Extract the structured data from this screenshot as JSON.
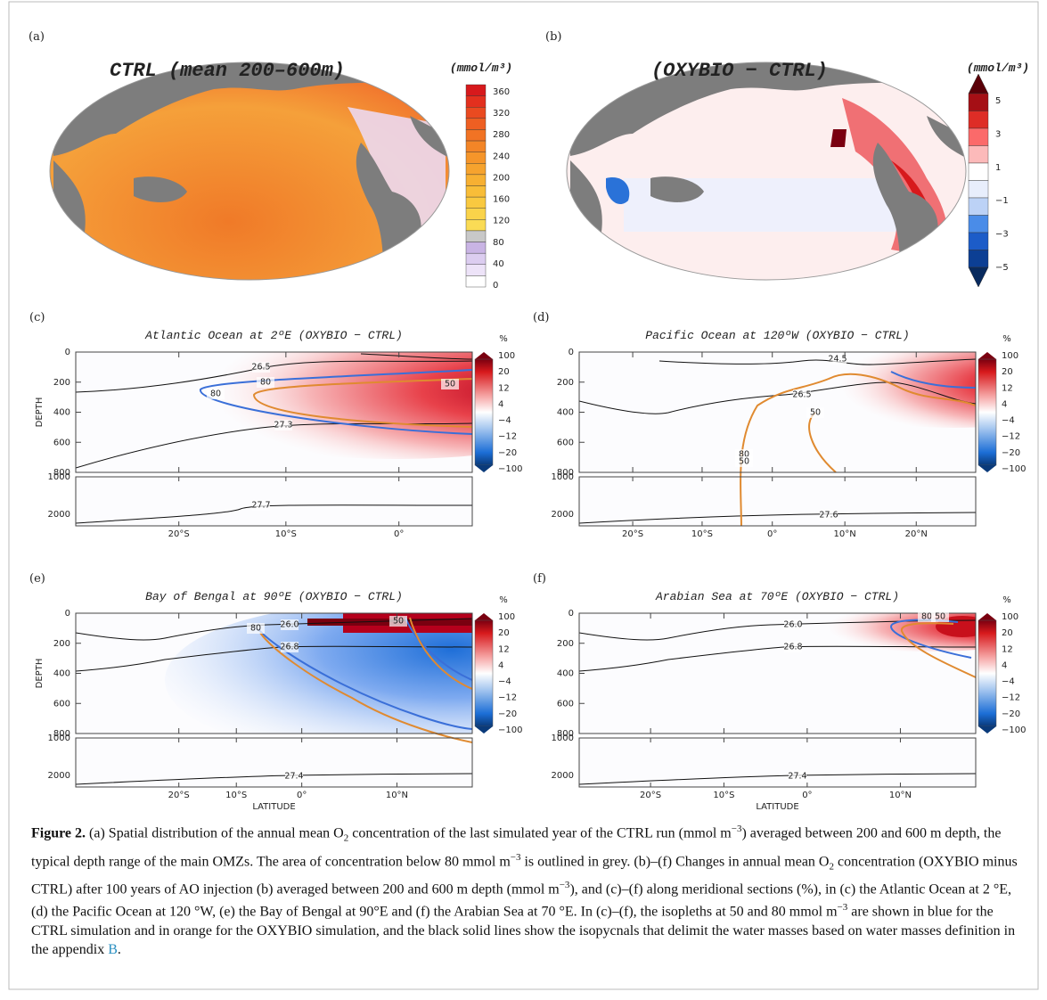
{
  "panels": [
    {
      "label": "(a)",
      "title": "CTRL (mean 200–600m)",
      "units": "(mmol/m³)",
      "colorbar_ticks": [
        "360",
        "320",
        "280",
        "240",
        "200",
        "160",
        "120",
        "80",
        "40",
        "0"
      ]
    },
    {
      "label": "(b)",
      "title": "(OXYBIO − CTRL)",
      "units": "(mmol/m³)",
      "colorbar_ticks": [
        "5",
        "3",
        "1",
        "−1",
        "−3",
        "−5"
      ]
    },
    {
      "label": "(c)",
      "title": "Atlantic Ocean at 2ºE (OXYBIO − CTRL)",
      "units": "%",
      "colorbar_ticks": [
        "100",
        "20",
        "12",
        "4",
        "−4",
        "−12",
        "−20",
        "−100"
      ],
      "y_label": "DEPTH",
      "y_ticks": [
        "0",
        "200",
        "400",
        "600",
        "800"
      ],
      "lower_y_ticks": [
        "1000",
        "2000"
      ],
      "x_ticks": [
        "20°S",
        "10°S",
        "0°"
      ],
      "contour_labels": [
        "26.5",
        "80",
        "80",
        "50",
        "27.3",
        "27.7"
      ]
    },
    {
      "label": "(d)",
      "title": "Pacific Ocean at 120ºW (OXYBIO − CTRL)",
      "units": "%",
      "colorbar_ticks": [
        "100",
        "20",
        "12",
        "4",
        "−4",
        "−12",
        "−20",
        "−100"
      ],
      "y_ticks": [
        "0",
        "200",
        "400",
        "600",
        "800"
      ],
      "lower_y_ticks": [
        "1000",
        "2000"
      ],
      "x_ticks": [
        "20°S",
        "10°S",
        "0°",
        "10°N",
        "20°N"
      ],
      "contour_labels": [
        "24.5",
        "26.5",
        "50",
        "80",
        "50",
        "27.6"
      ]
    },
    {
      "label": "(e)",
      "title": "Bay of Bengal at 90ºE (OXYBIO − CTRL)",
      "units": "%",
      "colorbar_ticks": [
        "100",
        "20",
        "12",
        "4",
        "−4",
        "−12",
        "−20",
        "−100"
      ],
      "y_label": "DEPTH",
      "x_label": "LATITUDE",
      "y_ticks": [
        "0",
        "200",
        "400",
        "600",
        "800"
      ],
      "lower_y_ticks": [
        "1000",
        "2000"
      ],
      "x_ticks": [
        "20°S",
        "10°S",
        "0°",
        "10°N"
      ],
      "contour_labels": [
        "26.0",
        "80",
        "50",
        "26.8",
        "27.4"
      ]
    },
    {
      "label": "(f)",
      "title": "Arabian Sea at 70ºE (OXYBIO − CTRL)",
      "units": "%",
      "colorbar_ticks": [
        "100",
        "20",
        "12",
        "4",
        "−4",
        "−12",
        "−20",
        "−100"
      ],
      "x_label": "LATITUDE",
      "y_ticks": [
        "0",
        "200",
        "400",
        "600",
        "800"
      ],
      "lower_y_ticks": [
        "1000",
        "2000"
      ],
      "x_ticks": [
        "20°S",
        "10°S",
        "0°",
        "10°N"
      ],
      "contour_labels": [
        "26.0",
        "80",
        "50",
        "26.8",
        "27.4"
      ]
    }
  ],
  "caption": [
    {
      "text": "Figure 2.",
      "format": "bold"
    },
    {
      "text": " (a) Spatial distribution of the annual mean O"
    },
    {
      "text": "2",
      "format": "sub"
    },
    {
      "text": " concentration of the last simulated year of the CTRL run (mmol m"
    },
    {
      "text": "−3",
      "format": "sup"
    },
    {
      "text": ") averaged between 200 and 600 m depth, the typical depth range of the main OMZs. The area of concentration below 80 mmol m"
    },
    {
      "text": "−3",
      "format": "sup"
    },
    {
      "text": " is outlined in grey. (b)–(f) Changes in annual mean O"
    },
    {
      "text": "2",
      "format": "sub"
    },
    {
      "text": " concentration (OXYBIO minus CTRL) after 100 years of AO injection (b) averaged between 200 and 600 m depth (mmol m"
    },
    {
      "text": "−3",
      "format": "sup"
    },
    {
      "text": "), and (c)–(f) along meridional sections (%), in (c) the Atlantic Ocean at 2 °E, (d) the Pacific Ocean at 120 °W, (e) the Bay of Bengal at 90°E and (f) the Arabian Sea at 70 °E. In (c)–(f), the isopleths at 50 and 80 mmol m"
    },
    {
      "text": "−3",
      "format": "sup"
    },
    {
      "text": " are shown in blue for the CTRL simulation and in orange for the OXYBIO simulation, and the black solid lines show the isopycnals that delimit the water masses based on water masses definition in the appendix "
    },
    {
      "text": "B",
      "format": "link"
    },
    {
      "text": "."
    }
  ]
}
